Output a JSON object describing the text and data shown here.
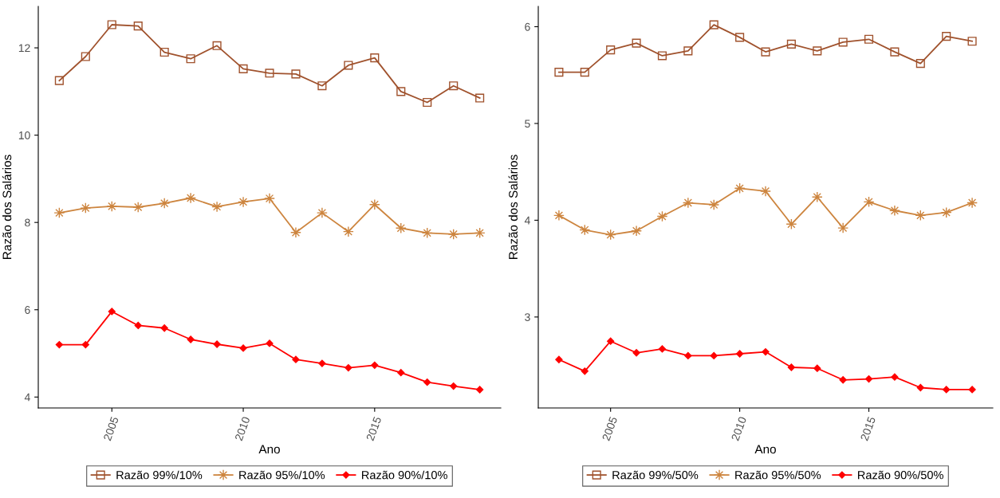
{
  "chart_data": [
    {
      "type": "line",
      "xlabel": "Ano",
      "ylabel": "Razão dos Salários",
      "x": [
        2003,
        2004,
        2005,
        2006,
        2007,
        2008,
        2009,
        2010,
        2011,
        2012,
        2013,
        2014,
        2015,
        2016,
        2017,
        2018,
        2019
      ],
      "xlim": [
        2002.2,
        2019.8
      ],
      "xticks": [
        2005,
        2010,
        2015
      ],
      "ylim": [
        3.75,
        12.95
      ],
      "yticks": [
        4,
        6,
        8,
        10,
        12
      ],
      "grid": false,
      "legend": "bottom",
      "line_style": "solid",
      "series": [
        {
          "name": "Razão 99%/10%",
          "color": "#a0522d",
          "marker": "square",
          "values": [
            11.25,
            11.8,
            12.53,
            12.5,
            11.9,
            11.75,
            12.05,
            11.52,
            11.42,
            11.4,
            11.13,
            11.6,
            11.77,
            11.0,
            10.75,
            11.13,
            10.85
          ]
        },
        {
          "name": "Razão 95%/10%",
          "color": "#cd853f",
          "marker": "star",
          "values": [
            8.22,
            8.33,
            8.37,
            8.35,
            8.44,
            8.56,
            8.36,
            8.47,
            8.55,
            7.77,
            8.22,
            7.79,
            8.41,
            7.87,
            7.76,
            7.73,
            7.76
          ]
        },
        {
          "name": "Razão 90%/10%",
          "color": "#ff0000",
          "marker": "diamond",
          "values": [
            5.2,
            5.2,
            5.96,
            5.64,
            5.58,
            5.32,
            5.21,
            5.12,
            5.23,
            4.86,
            4.77,
            4.67,
            4.73,
            4.56,
            4.34,
            4.25,
            4.17
          ]
        }
      ]
    },
    {
      "type": "line",
      "xlabel": "Ano",
      "ylabel": "Razão dos Salários",
      "x": [
        2003,
        2004,
        2005,
        2006,
        2007,
        2008,
        2009,
        2010,
        2011,
        2012,
        2013,
        2014,
        2015,
        2016,
        2017,
        2018,
        2019
      ],
      "xlim": [
        2002.2,
        2019.8
      ],
      "xticks": [
        2005,
        2010,
        2015
      ],
      "ylim": [
        2.06,
        6.21
      ],
      "yticks": [
        3,
        4,
        5,
        6
      ],
      "grid": false,
      "legend": "bottom",
      "line_style": "solid",
      "series": [
        {
          "name": "Razão 99%/50%",
          "color": "#a0522d",
          "marker": "square",
          "values": [
            5.53,
            5.53,
            5.76,
            5.83,
            5.7,
            5.75,
            6.02,
            5.89,
            5.74,
            5.82,
            5.75,
            5.84,
            5.87,
            5.74,
            5.62,
            5.9,
            5.85
          ]
        },
        {
          "name": "Razão 95%/50%",
          "color": "#cd853f",
          "marker": "star",
          "values": [
            4.05,
            3.9,
            3.85,
            3.89,
            4.04,
            4.18,
            4.16,
            4.33,
            4.3,
            3.96,
            4.24,
            3.92,
            4.19,
            4.1,
            4.05,
            4.08,
            4.18
          ]
        },
        {
          "name": "Razão 90%/50%",
          "color": "#ff0000",
          "marker": "diamond",
          "values": [
            2.56,
            2.44,
            2.75,
            2.63,
            2.67,
            2.6,
            2.6,
            2.62,
            2.64,
            2.48,
            2.47,
            2.35,
            2.36,
            2.38,
            2.27,
            2.25,
            2.25
          ]
        }
      ]
    }
  ]
}
